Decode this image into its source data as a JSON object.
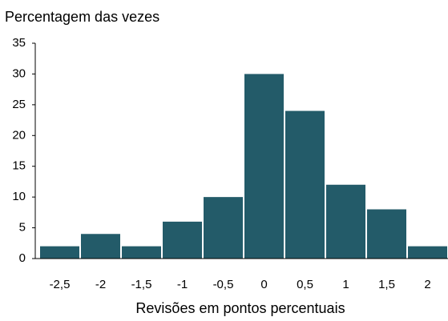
{
  "chart_data": {
    "type": "bar",
    "title": "Percentagem das vezes",
    "x_label": "Revisões em pontos percentuais",
    "categories": [
      "-2,5",
      "-2",
      "-1,5",
      "-1",
      "-0,5",
      "0",
      "0,5",
      "1",
      "1,5",
      "2"
    ],
    "values": [
      2,
      4,
      2,
      6,
      10,
      30,
      24,
      12,
      8,
      2
    ],
    "color": "#235b69",
    "ylim": [
      0,
      35
    ],
    "yticks": [
      0,
      5,
      10,
      15,
      20,
      25,
      30,
      35
    ],
    "grid": false
  }
}
